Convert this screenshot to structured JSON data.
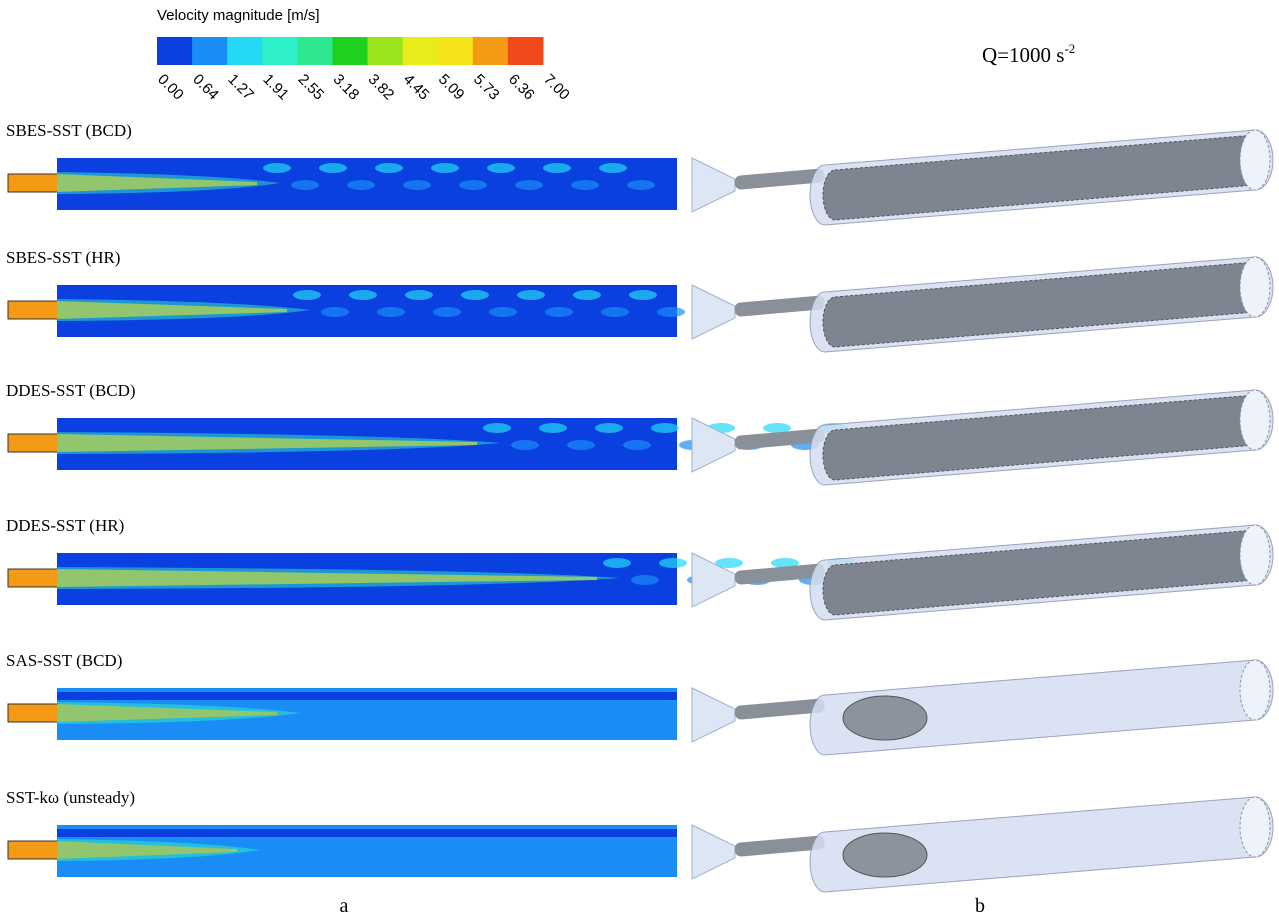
{
  "colorbar": {
    "title": "Velocity magnitude [m/s]",
    "colors": [
      "#0a3fe0",
      "#1a8cf5",
      "#22d8f5",
      "#2ef0c8",
      "#2ee890",
      "#1fd21f",
      "#9ae41e",
      "#e8ec1a",
      "#f5e41a",
      "#f59a14",
      "#f04a1c"
    ],
    "ticks": [
      "0.00",
      "0.64",
      "1.27",
      "1.91",
      "2.55",
      "3.18",
      "3.82",
      "4.45",
      "5.09",
      "5.73",
      "6.36",
      "7.00"
    ]
  },
  "column_b_title": {
    "text": "Q=1000 s",
    "superscript": "-2"
  },
  "panels": [
    {
      "label": "SBES-SST (BCD)"
    },
    {
      "label": "SBES-SST (HR)"
    },
    {
      "label": "DDES-SST (BCD)"
    },
    {
      "label": "DDES-SST (HR)"
    },
    {
      "label": "SAS-SST (BCD)"
    },
    {
      "label": "SST-kω (unsteady)"
    }
  ],
  "column_labels": [
    "a",
    "b"
  ]
}
